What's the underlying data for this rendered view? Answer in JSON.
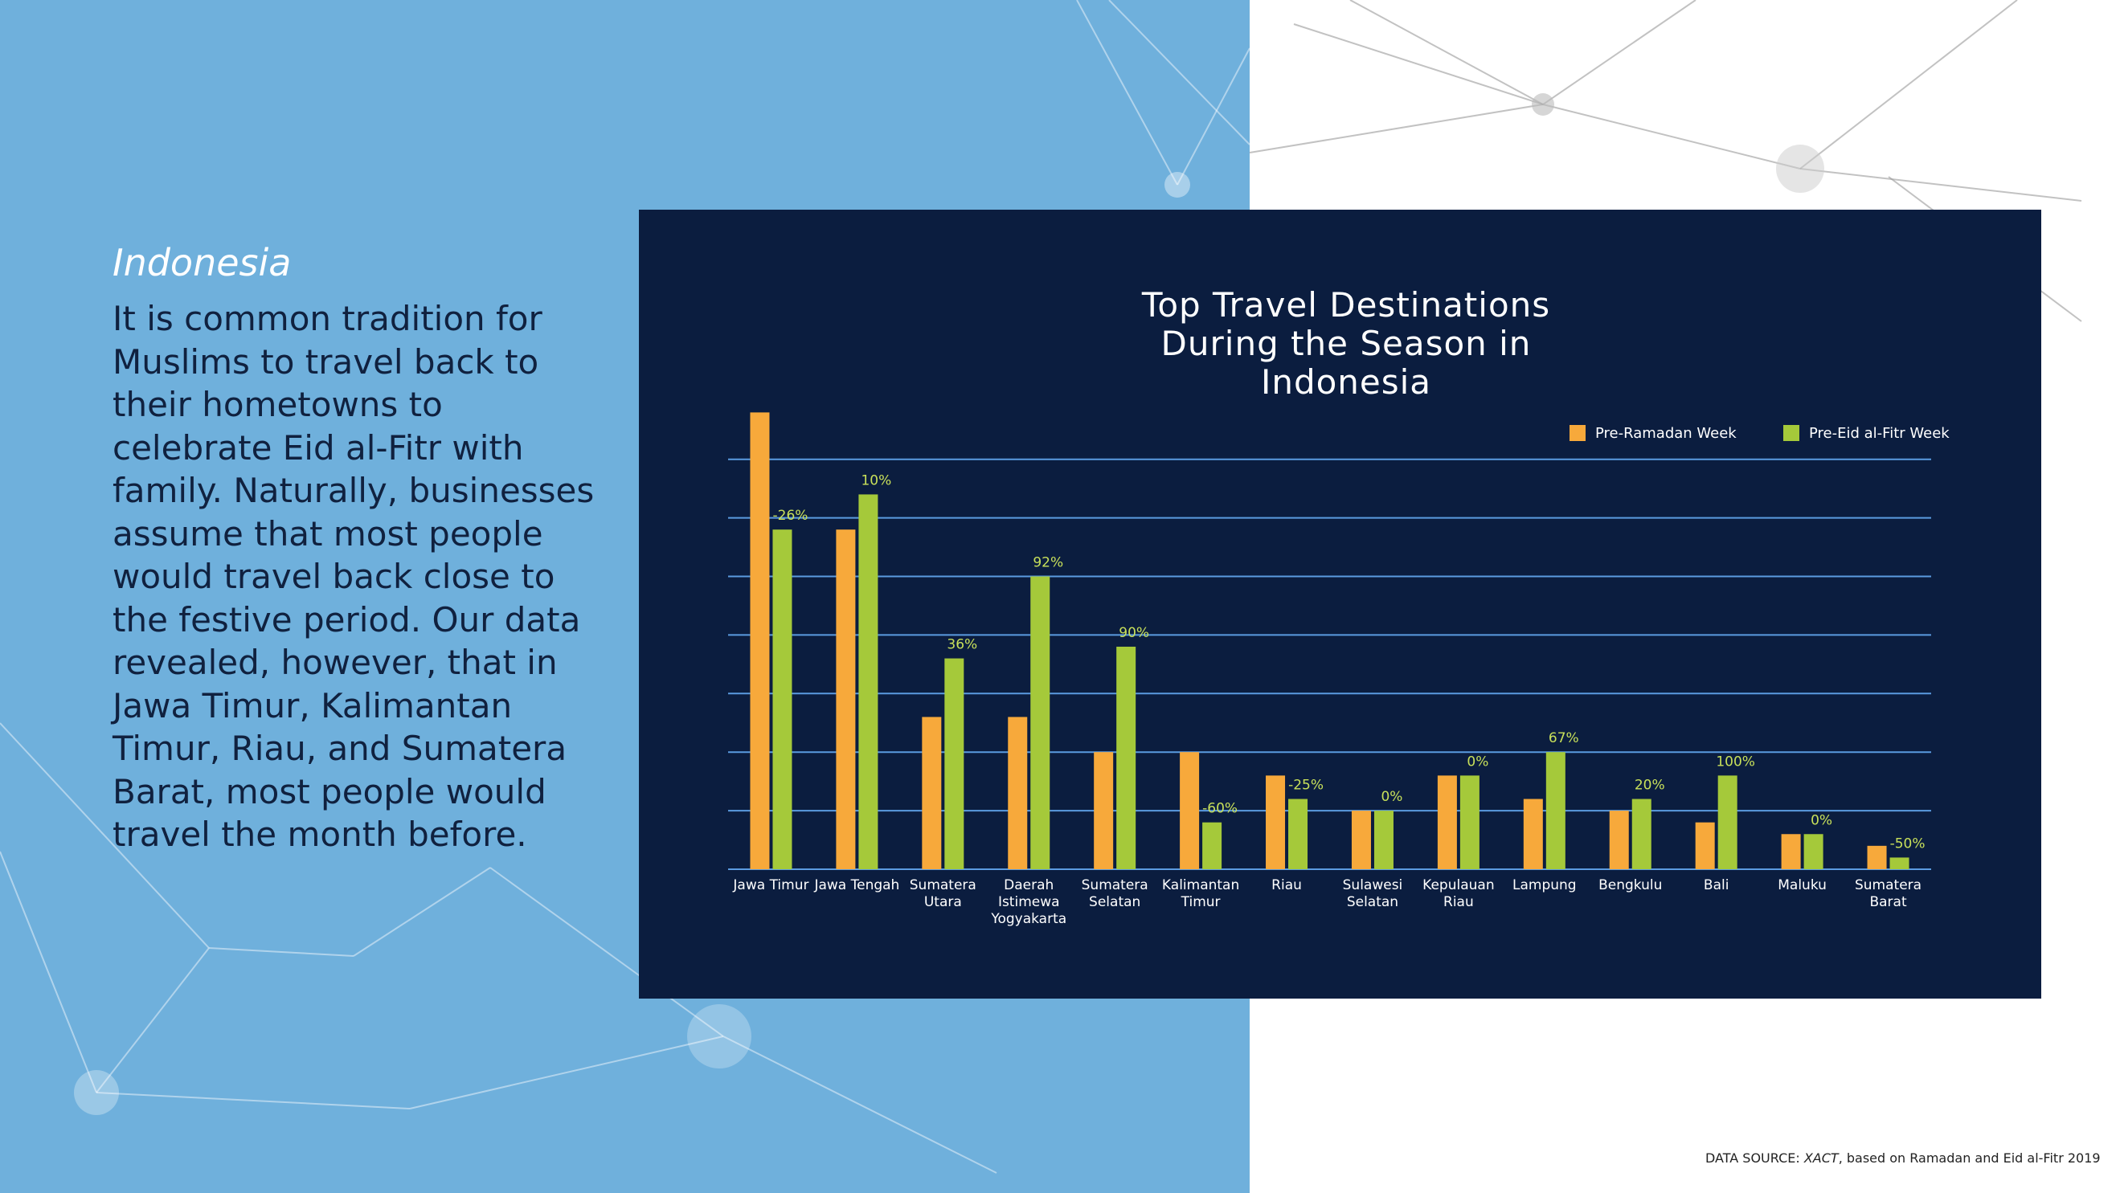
{
  "heading": "Indonesia",
  "body": "It is common tradition for Muslims to travel back to their hometowns to celebrate Eid al-Fitr with family. Naturally, businesses assume that most people would travel back close to the festive period. Our data revealed, however, that in Jawa Timur,  Kalimantan Timur, Riau, and Sumatera Barat, most people would travel the month before.",
  "source": {
    "prefix": "DATA SOURCE: ",
    "name": "XACT",
    "suffix": ", based on Ramadan and Eid al-Fitr 2019"
  },
  "chart_data": {
    "type": "bar",
    "title": "Top Travel Destinations During the Season in Indonesia",
    "categories": [
      "Jawa Timur",
      "Jawa Tengah",
      "Sumatera Utara",
      "Daerah Istimewa Yogyakarta",
      "Sumatera Selatan",
      "Kalimantan Timur",
      "Riau",
      "Sulawesi Selatan",
      "Kepulauan Riau",
      "Lampung",
      "Bengkulu",
      "Bali",
      "Maluku",
      "Sumatera Barat"
    ],
    "series": [
      {
        "name": "Pre-Ramadan Week",
        "color": "#f7a93b",
        "values": [
          7.8,
          5.8,
          2.6,
          2.6,
          2.0,
          2.0,
          1.6,
          1.0,
          1.6,
          1.2,
          1.0,
          0.8,
          0.6,
          0.4
        ]
      },
      {
        "name": "Pre-Eid al-Fitr Week",
        "color": "#a5c93a",
        "values": [
          5.8,
          6.4,
          3.6,
          5.0,
          3.8,
          0.8,
          1.2,
          1.0,
          1.6,
          2.0,
          1.2,
          1.6,
          0.6,
          0.2
        ]
      }
    ],
    "change_labels": [
      "-26%",
      "10%",
      "36%",
      "92%",
      "90%",
      "-60%",
      "-25%",
      "0%",
      "0%",
      "67%",
      "20%",
      "100%",
      "0%",
      "-50%"
    ],
    "ylim": [
      0,
      8
    ],
    "yticks": [
      0,
      1,
      2,
      3,
      4,
      5,
      6,
      7
    ],
    "grid": true,
    "legend": "top-right"
  }
}
